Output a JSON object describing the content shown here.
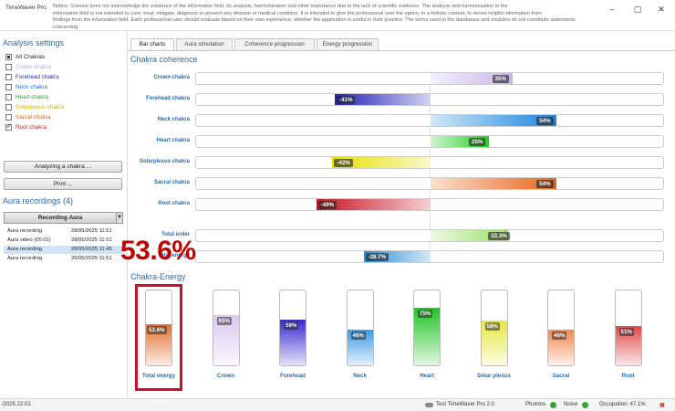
{
  "window": {
    "app_title": "TimeWaver Pro",
    "notice": "Notice: Science does not acknowledge the existence of the information field, its analysis, harmonization and other importance due to the lack of scientific evidence. The analysis and harmonization in the\ninformation field is not intended to cure, treat, mitigate, diagnose or prevent any disease or medical condition. It is intended to give the professional user the option, in a holistic context, to derive helpful information from\nfindings from the information field. Each professional user should evaluate based on their own experience, whether the application is useful in their practice. The terms used in the databases and modules do not constitute statements concerning"
  },
  "left": {
    "analysis_title": "Analysis settings",
    "checkboxes": [
      {
        "label": "All Chakras",
        "color": "#222222",
        "state": "square"
      },
      {
        "label": "Crown chakra",
        "color": "#b9a6d9",
        "state": "off"
      },
      {
        "label": "Forehead chakra",
        "color": "#2b2bbd",
        "state": "off"
      },
      {
        "label": "Neck chakra",
        "color": "#1e73c8",
        "state": "off"
      },
      {
        "label": "Heart chakra",
        "color": "#2ca12c",
        "state": "off"
      },
      {
        "label": "Solarplexus chakra",
        "color": "#c9b800",
        "state": "off"
      },
      {
        "label": "Sacral chakra",
        "color": "#e06a1a",
        "state": "off"
      },
      {
        "label": "Root chakra",
        "color": "#c0262d",
        "state": "checked"
      }
    ],
    "analyze_button": "Analyzing a chakra ...",
    "print_button": "Print ...",
    "recordings_title": "Aura recordings (4)",
    "recording_button": "Recording Aura",
    "recordings": [
      {
        "name": "Aura recording",
        "date": "28/05/2025 11:51"
      },
      {
        "name": "Aura video (05:01)",
        "date": "28/05/2025 11:51"
      },
      {
        "name": "Aura recording",
        "date": "28/05/2025 11:45"
      },
      {
        "name": "Aura recording",
        "date": "26/05/2025 11:51"
      }
    ]
  },
  "tabs": [
    "Bar charts",
    "Aura simulation",
    "Coherence progression",
    "Energy progression"
  ],
  "coherence": {
    "title": "Chakra coherence",
    "bars": [
      {
        "label": "Crown chakra",
        "value": 35,
        "badge": "35%",
        "color": "#c9b6ea"
      },
      {
        "label": "Forehead chakra",
        "value": -41,
        "badge": "-41%",
        "color": "#2323b5"
      },
      {
        "label": "Neck chakra",
        "value": 54,
        "badge": "54%",
        "color": "#1a86e0"
      },
      {
        "label": "Heart chakra",
        "value": 25,
        "badge": "25%",
        "color": "#22cc22"
      },
      {
        "label": "Solarplexus chakra",
        "value": -42,
        "badge": "-42%",
        "color": "#e6e000"
      },
      {
        "label": "Sacral chakra",
        "value": 54,
        "badge": "54%",
        "color": "#e8651a"
      },
      {
        "label": "Root chakra",
        "value": -49,
        "badge": "-49%",
        "color": "#c8131f"
      }
    ],
    "totals": [
      {
        "label": "Total order",
        "value": 33.3,
        "badge": "33.3%",
        "color": "#9ee06a"
      },
      {
        "label": "Total energy",
        "value": -28.7,
        "badge": "-28.7%",
        "color": "#2a8fd6"
      }
    ]
  },
  "energy": {
    "title": "Chakra-Energy",
    "highlight": "53.6%",
    "columns": [
      {
        "label": "Total energy",
        "value": 53.6,
        "badge": "53.6%",
        "color": "#e07030"
      },
      {
        "label": "Crown",
        "value": 65,
        "badge": "65%",
        "color": "#d9c8f2"
      },
      {
        "label": "Forehead",
        "value": 59,
        "badge": "59%",
        "color": "#3a2ad0"
      },
      {
        "label": "Neck",
        "value": 46,
        "badge": "46%",
        "color": "#3a9ae6"
      },
      {
        "label": "Heart",
        "value": 75,
        "badge": "75%",
        "color": "#22c422"
      },
      {
        "label": "Solar plexus",
        "value": 58,
        "badge": "58%",
        "color": "#e6e640"
      },
      {
        "label": "Sacral",
        "value": 46,
        "badge": "46%",
        "color": "#f08a50"
      },
      {
        "label": "Root",
        "value": 51,
        "badge": "51%",
        "color": "#e04a4a"
      }
    ]
  },
  "status": {
    "left_date": "/2025 22:01",
    "device": "Test TimeWaver Pro 2.0",
    "photons": "Photons",
    "noise": "Noise",
    "occupation": "Occupation: 47.1%"
  }
}
